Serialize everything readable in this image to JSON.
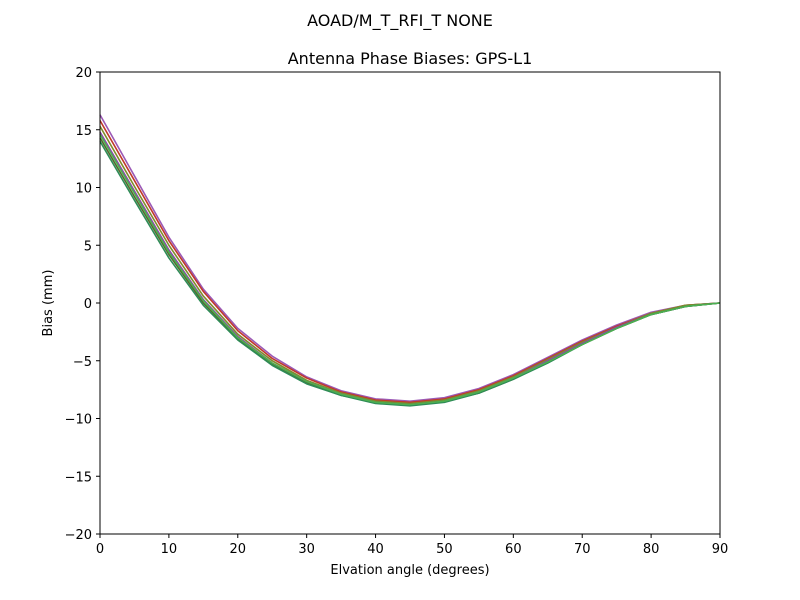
{
  "chart_data": {
    "type": "line",
    "suptitle": "AOAD/M_T_RFI_T  NONE",
    "title": "Antenna Phase Biases: GPS-L1",
    "xlabel": "Elvation angle (degrees)",
    "ylabel": "Bias (mm)",
    "xlim": [
      0,
      90
    ],
    "ylim": [
      -20,
      20
    ],
    "xticks": [
      0,
      10,
      20,
      30,
      40,
      50,
      60,
      70,
      80,
      90
    ],
    "yticks": [
      20,
      15,
      10,
      5,
      0,
      -5,
      -10,
      -15,
      -20
    ],
    "xtick_labels": [
      "0",
      "10",
      "20",
      "30",
      "40",
      "50",
      "60",
      "70",
      "80",
      "90"
    ],
    "ytick_labels": [
      "20",
      "15",
      "10",
      "5",
      "0",
      "−5",
      "−10",
      "−15",
      "−20"
    ],
    "grid": false,
    "x": [
      0,
      5,
      10,
      15,
      20,
      25,
      30,
      35,
      40,
      45,
      50,
      55,
      60,
      65,
      70,
      75,
      80,
      85,
      90
    ],
    "series": [
      {
        "color": "#9b59b6",
        "values": [
          16.3,
          11.0,
          5.7,
          1.2,
          -2.2,
          -4.6,
          -6.4,
          -7.6,
          -8.3,
          -8.5,
          -8.2,
          -7.4,
          -6.2,
          -4.7,
          -3.2,
          -1.9,
          -0.8,
          -0.2,
          0.0
        ]
      },
      {
        "color": "#c0392b",
        "values": [
          15.8,
          10.6,
          5.4,
          1.0,
          -2.4,
          -4.8,
          -6.5,
          -7.7,
          -8.4,
          -8.6,
          -8.3,
          -7.5,
          -6.3,
          -4.8,
          -3.3,
          -2.0,
          -0.9,
          -0.2,
          0.0
        ]
      },
      {
        "color": "#7f8c2a",
        "values": [
          15.3,
          10.1,
          5.0,
          0.6,
          -2.7,
          -5.0,
          -6.7,
          -7.8,
          -8.5,
          -8.7,
          -8.4,
          -7.6,
          -6.4,
          -4.9,
          -3.4,
          -2.1,
          -0.9,
          -0.2,
          0.0
        ]
      },
      {
        "color": "#8e44ad",
        "values": [
          14.8,
          9.7,
          4.6,
          0.3,
          -2.9,
          -5.2,
          -6.8,
          -7.9,
          -8.6,
          -8.8,
          -8.5,
          -7.7,
          -6.5,
          -5.0,
          -3.5,
          -2.1,
          -1.0,
          -0.3,
          0.0
        ]
      },
      {
        "color": "#556b2f",
        "values": [
          14.3,
          9.2,
          4.2,
          0.0,
          -3.1,
          -5.3,
          -6.9,
          -8.0,
          -8.6,
          -8.8,
          -8.5,
          -7.8,
          -6.6,
          -5.1,
          -3.6,
          -2.2,
          -1.0,
          -0.3,
          0.0
        ]
      },
      {
        "color": "#2e8b57",
        "values": [
          14.0,
          8.9,
          3.9,
          -0.2,
          -3.2,
          -5.4,
          -7.0,
          -8.0,
          -8.7,
          -8.9,
          -8.6,
          -7.8,
          -6.6,
          -5.2,
          -3.6,
          -2.2,
          -1.0,
          -0.3,
          0.0
        ]
      },
      {
        "color": "#4caf50",
        "values": [
          14.6,
          9.5,
          4.4,
          0.2,
          -3.0,
          -5.2,
          -6.8,
          -7.9,
          -8.6,
          -8.8,
          -8.5,
          -7.7,
          -6.5,
          -5.1,
          -3.6,
          -2.2,
          -1.0,
          -0.3,
          0.0
        ]
      }
    ]
  }
}
